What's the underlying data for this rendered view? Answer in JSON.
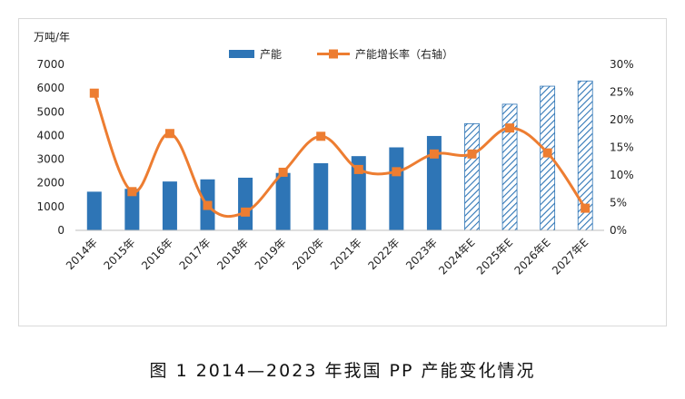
{
  "caption": "图 1  2014—2023 年我国 PP 产能变化情况",
  "chart_data": {
    "type": "bar",
    "categories": [
      "2014年",
      "2015年",
      "2016年",
      "2017年",
      "2018年",
      "2019年",
      "2020年",
      "2021年",
      "2022年",
      "2023年",
      "2024年E",
      "2025年E",
      "2026年E",
      "2027年E"
    ],
    "forecast_from_index": 10,
    "y_unit_label": "万吨/年",
    "ylim": [
      0,
      7000
    ],
    "yticks": [
      0,
      1000,
      2000,
      3000,
      4000,
      5000,
      6000,
      7000
    ],
    "y2lim": [
      0,
      30
    ],
    "y2ticks": [
      "0%",
      "5%",
      "10%",
      "15%",
      "20%",
      "25%",
      "30%"
    ],
    "legend_position": "top-center",
    "grid": false,
    "series": [
      {
        "name": "产能",
        "type": "bar",
        "axis": "left",
        "color": "#2e75b6",
        "values": [
          1630,
          1750,
          2060,
          2150,
          2220,
          2420,
          2830,
          3130,
          3500,
          3980,
          4500,
          5320,
          6080,
          6300
        ]
      },
      {
        "name": "产能增长率（右轴）",
        "type": "line",
        "axis": "right",
        "color": "#ed7d31",
        "values": [
          24.8,
          7.0,
          17.5,
          4.5,
          3.3,
          10.5,
          17.0,
          11.0,
          10.6,
          13.8,
          13.8,
          18.5,
          14.0,
          4.0
        ]
      }
    ]
  }
}
